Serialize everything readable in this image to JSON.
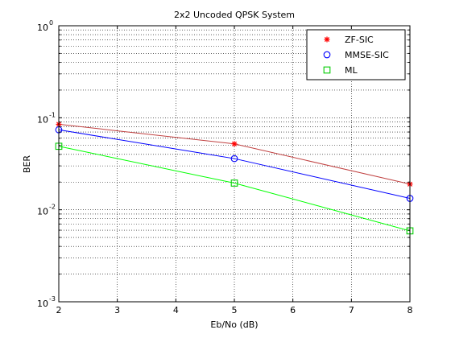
{
  "chart_data": {
    "type": "line",
    "title": "2x2 Uncoded QPSK System",
    "xlabel": "Eb/No (dB)",
    "ylabel": "BER",
    "x_scale": "linear",
    "y_scale": "log",
    "xlim": [
      2,
      8
    ],
    "ylim": [
      0.001,
      1
    ],
    "x_ticks": [
      "2",
      "3",
      "4",
      "5",
      "6",
      "7",
      "8"
    ],
    "y_ticks": [
      {
        "base": "10",
        "exp": "-3"
      },
      {
        "base": "10",
        "exp": "-2"
      },
      {
        "base": "10",
        "exp": "-1"
      },
      {
        "base": "10",
        "exp": "0"
      }
    ],
    "grid": true,
    "legend_position": "top-right",
    "x": [
      2,
      5,
      8
    ],
    "series": [
      {
        "name": "ZF-SIC",
        "values": [
          0.085,
          0.052,
          0.019
        ],
        "color": "#ff0000",
        "line_color": "#c04040",
        "marker": "star"
      },
      {
        "name": "MMSE-SIC",
        "values": [
          0.074,
          0.036,
          0.0133
        ],
        "color": "#0000ff",
        "line_color": "#0000ff",
        "marker": "circle"
      },
      {
        "name": "ML",
        "values": [
          0.049,
          0.0195,
          0.0059
        ],
        "color": "#00cc00",
        "line_color": "#00ff00",
        "marker": "square"
      }
    ]
  }
}
